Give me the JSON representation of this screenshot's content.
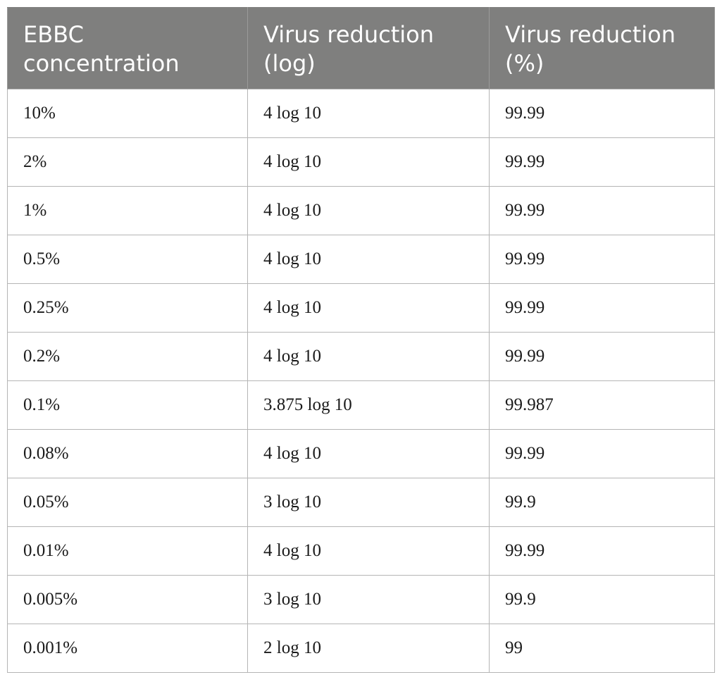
{
  "table": {
    "headers": [
      "EBBC concentration",
      "Virus reduction (log)",
      "Virus reduction (%)"
    ],
    "rows": [
      [
        "10%",
        "4 log 10",
        "99.99"
      ],
      [
        "2%",
        "4 log 10",
        "99.99"
      ],
      [
        "1%",
        "4 log 10",
        "99.99"
      ],
      [
        "0.5%",
        "4 log 10",
        "99.99"
      ],
      [
        "0.25%",
        "4 log 10",
        "99.99"
      ],
      [
        "0.2%",
        "4 log 10",
        "99.99"
      ],
      [
        "0.1%",
        "3.875 log 10",
        "99.987"
      ],
      [
        "0.08%",
        "4 log 10",
        "99.99"
      ],
      [
        "0.05%",
        "3 log 10",
        "99.9"
      ],
      [
        "0.01%",
        "4 log 10",
        "99.99"
      ],
      [
        "0.005%",
        "3 log 10",
        "99.9"
      ],
      [
        "0.001%",
        "2 log 10",
        "99"
      ]
    ]
  },
  "colors": {
    "header_background": "#7f7f7e",
    "header_text": "#ffffff",
    "grid_line": "#b5b5b5"
  }
}
